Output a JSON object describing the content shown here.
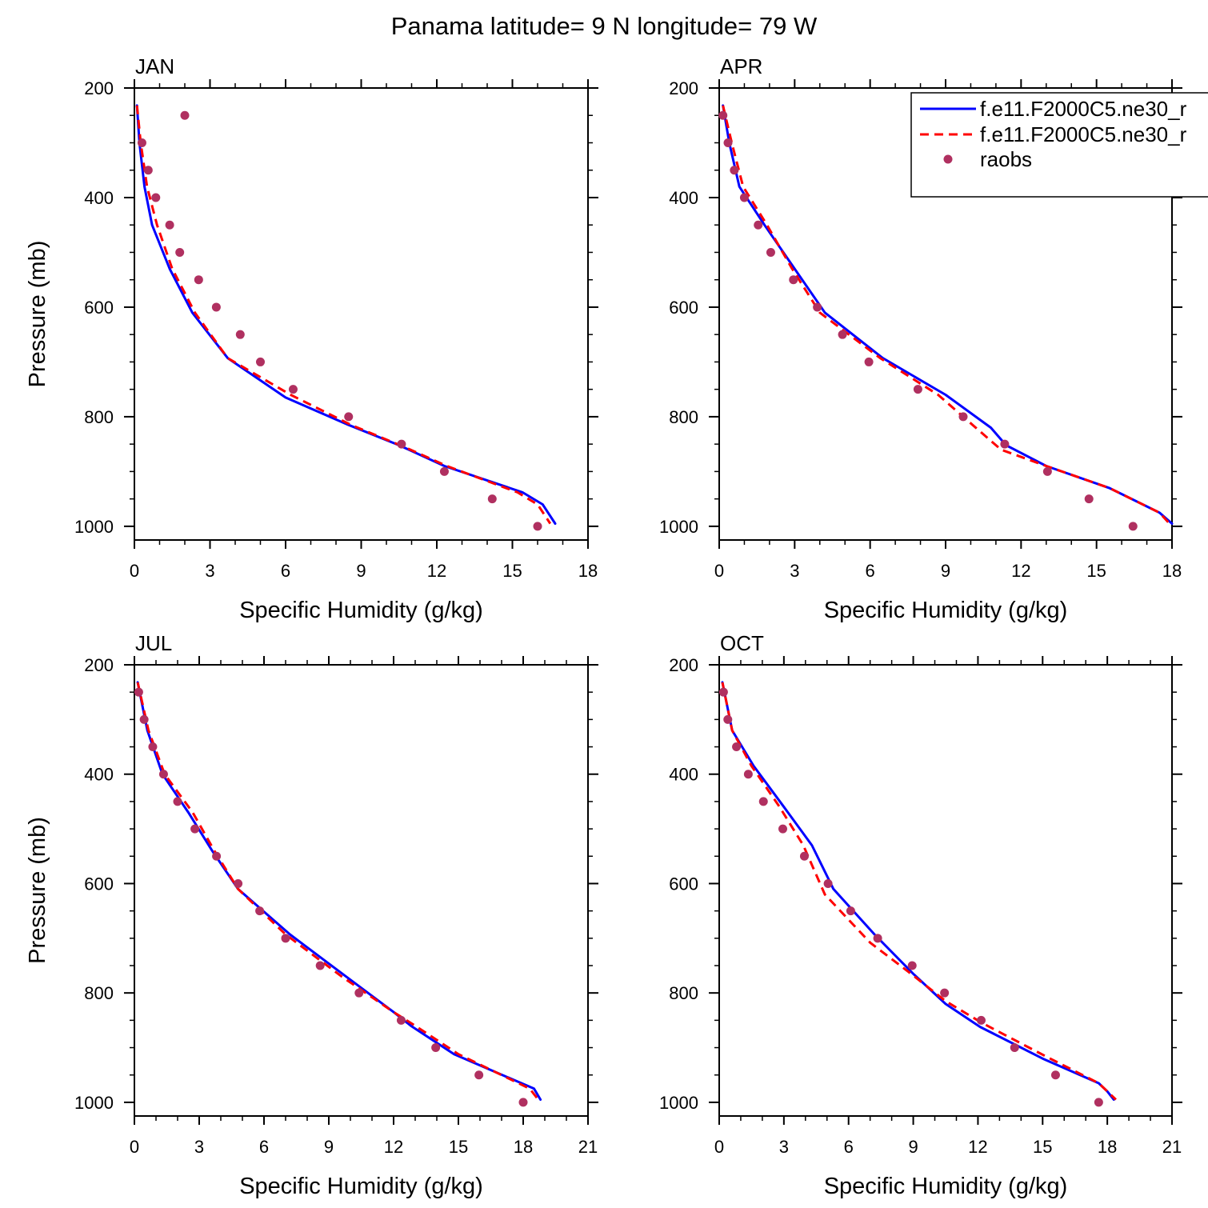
{
  "figure": {
    "title": "Panama  latitude= 9 N longitude= 79 W"
  },
  "legend": {
    "entries": [
      "f.e11.F2000C5.ne30_r",
      "f.e11.F2000C5.ne30_r",
      "raobs"
    ],
    "placement": "top-right of APR panel",
    "colors": [
      "#0000ff",
      "#ff0000",
      "#b03060"
    ]
  },
  "chart_data": [
    {
      "type": "line",
      "panel_label": "JAN",
      "xlabel": "Specific Humidity (g/kg)",
      "ylabel": "Pressure (mb)",
      "xlim": [
        0,
        18
      ],
      "ylim": [
        1025,
        200
      ],
      "y_inverted": true,
      "xticks": [
        0,
        3,
        6,
        9,
        12,
        15,
        18
      ],
      "yticks": [
        200,
        400,
        600,
        800,
        1000
      ],
      "series": [
        {
          "style": "solid",
          "color": "#0000ff",
          "x": [
            0.1,
            0.2,
            0.4,
            0.7,
            1.4,
            2.3,
            3.7,
            6.0,
            8.5,
            10.5,
            12.3,
            15.4,
            16.2,
            16.7
          ],
          "y": [
            232,
            300,
            380,
            450,
            530,
            610,
            693,
            765,
            815,
            852,
            890,
            938,
            960,
            995
          ]
        },
        {
          "style": "dashed",
          "color": "#ff0000",
          "x": [
            0.1,
            0.25,
            0.5,
            0.9,
            1.5,
            2.4,
            3.7,
            6.2,
            8.6,
            10.7,
            12.4,
            15.2,
            16.0,
            16.5
          ],
          "y": [
            232,
            300,
            380,
            450,
            530,
            610,
            693,
            760,
            815,
            855,
            890,
            938,
            960,
            995
          ]
        },
        {
          "style": "points",
          "color": "#b03060",
          "x": [
            2.0,
            0.3,
            0.55,
            0.85,
            1.4,
            1.8,
            2.55,
            3.25,
            4.2,
            5.0,
            6.3,
            8.5,
            10.6,
            12.3,
            14.2,
            16.0
          ],
          "y": [
            250,
            300,
            350,
            400,
            450,
            500,
            550,
            600,
            650,
            700,
            750,
            800,
            850,
            900,
            950,
            1000
          ]
        }
      ]
    },
    {
      "type": "line",
      "panel_label": "APR",
      "xlabel": "Specific Humidity (g/kg)",
      "ylabel": "",
      "xlim": [
        0,
        18
      ],
      "ylim": [
        1025,
        200
      ],
      "y_inverted": true,
      "xticks": [
        0,
        3,
        6,
        9,
        12,
        15,
        18
      ],
      "yticks": [
        200,
        400,
        600,
        800,
        1000
      ],
      "series": [
        {
          "style": "solid",
          "color": "#0000ff",
          "x": [
            0.15,
            0.4,
            0.8,
            1.8,
            3.0,
            4.2,
            6.5,
            9.0,
            10.8,
            11.4,
            13.0,
            15.5,
            17.5,
            18.0
          ],
          "y": [
            232,
            300,
            380,
            450,
            530,
            610,
            693,
            760,
            820,
            852,
            890,
            930,
            975,
            995
          ]
        },
        {
          "style": "dashed",
          "color": "#ff0000",
          "x": [
            0.15,
            0.5,
            0.95,
            1.9,
            2.9,
            4.0,
            6.4,
            8.7,
            10.2,
            11.2,
            13.0,
            15.5,
            17.5,
            17.9
          ],
          "y": [
            232,
            300,
            380,
            450,
            530,
            610,
            693,
            760,
            820,
            860,
            890,
            930,
            975,
            995
          ]
        },
        {
          "style": "points",
          "color": "#b03060",
          "x": [
            0.15,
            0.35,
            0.6,
            1.0,
            1.55,
            2.05,
            2.95,
            3.9,
            4.9,
            5.95,
            7.9,
            9.7,
            11.35,
            13.05,
            14.7,
            16.45
          ],
          "y": [
            250,
            300,
            350,
            400,
            450,
            500,
            550,
            600,
            650,
            700,
            750,
            800,
            850,
            900,
            950,
            1000
          ]
        }
      ]
    },
    {
      "type": "line",
      "panel_label": "JUL",
      "xlabel": "Specific Humidity (g/kg)",
      "ylabel": "Pressure (mb)",
      "xlim": [
        0,
        21
      ],
      "ylim": [
        1025,
        200
      ],
      "y_inverted": true,
      "xticks": [
        0,
        3,
        6,
        9,
        12,
        15,
        18,
        21
      ],
      "yticks": [
        200,
        400,
        600,
        800,
        1000
      ],
      "series": [
        {
          "style": "solid",
          "color": "#0000ff",
          "x": [
            0.15,
            0.6,
            1.3,
            2.5,
            3.6,
            4.8,
            7.2,
            9.8,
            12.0,
            12.8,
            14.8,
            18.5,
            18.8
          ],
          "y": [
            232,
            320,
            400,
            470,
            540,
            610,
            693,
            770,
            835,
            860,
            912,
            975,
            995
          ]
        },
        {
          "style": "dashed",
          "color": "#ff0000",
          "x": [
            0.15,
            0.65,
            1.4,
            2.7,
            3.7,
            4.8,
            7.0,
            9.6,
            12.0,
            13.0,
            15.0,
            18.3,
            18.7
          ],
          "y": [
            232,
            320,
            400,
            470,
            540,
            610,
            693,
            770,
            835,
            860,
            912,
            975,
            995
          ]
        },
        {
          "style": "points",
          "color": "#b03060",
          "x": [
            0.2,
            0.45,
            0.85,
            1.35,
            2.0,
            2.8,
            3.8,
            4.8,
            5.8,
            7.0,
            8.6,
            10.4,
            12.35,
            13.95,
            15.95,
            18.0
          ],
          "y": [
            250,
            300,
            350,
            400,
            450,
            500,
            550,
            600,
            650,
            700,
            750,
            800,
            850,
            900,
            950,
            1000
          ]
        }
      ]
    },
    {
      "type": "line",
      "panel_label": "OCT",
      "xlabel": "Specific Humidity (g/kg)",
      "ylabel": "",
      "xlim": [
        0,
        21
      ],
      "ylim": [
        1025,
        200
      ],
      "y_inverted": true,
      "xticks": [
        0,
        3,
        6,
        9,
        12,
        15,
        18,
        21
      ],
      "yticks": [
        200,
        400,
        600,
        800,
        1000
      ],
      "series": [
        {
          "style": "solid",
          "color": "#0000ff",
          "x": [
            0.15,
            0.6,
            1.6,
            3.0,
            4.3,
            5.3,
            7.2,
            9.0,
            10.5,
            12.1,
            15.0,
            17.6,
            18.0,
            18.3
          ],
          "y": [
            232,
            320,
            385,
            460,
            530,
            610,
            693,
            765,
            820,
            862,
            920,
            965,
            980,
            995
          ]
        },
        {
          "style": "dashed",
          "color": "#ff0000",
          "x": [
            0.15,
            0.6,
            1.5,
            2.8,
            3.9,
            4.9,
            7.0,
            8.9,
            10.5,
            12.2,
            15.1,
            17.6,
            18.0,
            18.4
          ],
          "y": [
            232,
            320,
            385,
            460,
            530,
            620,
            708,
            765,
            815,
            855,
            915,
            965,
            980,
            995
          ]
        },
        {
          "style": "points",
          "color": "#b03060",
          "x": [
            0.2,
            0.4,
            0.8,
            1.35,
            2.05,
            2.95,
            3.95,
            5.05,
            6.1,
            7.35,
            8.95,
            10.45,
            12.15,
            13.7,
            15.6,
            17.6
          ],
          "y": [
            250,
            300,
            350,
            400,
            450,
            500,
            550,
            600,
            650,
            700,
            750,
            800,
            850,
            900,
            950,
            1000
          ]
        }
      ]
    }
  ]
}
